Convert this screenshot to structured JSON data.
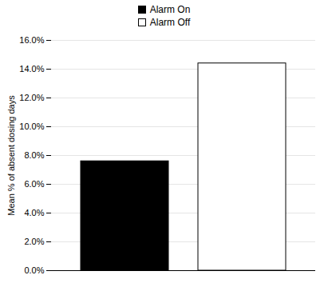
{
  "chart_data": {
    "type": "bar",
    "categories": [
      "Alarm On",
      "Alarm Off"
    ],
    "values": [
      0.076,
      0.144
    ],
    "colors": [
      "#000000",
      "#ffffff"
    ],
    "ylabel": "Mean % of absent dosing days",
    "ylim": [
      0,
      0.16
    ],
    "yticks": [
      {
        "value": 0.0,
        "label": "0.0%"
      },
      {
        "value": 0.02,
        "label": "2.0%"
      },
      {
        "value": 0.04,
        "label": "4.0%"
      },
      {
        "value": 0.06,
        "label": "6.0%"
      },
      {
        "value": 0.08,
        "label": "8.0%"
      },
      {
        "value": 0.1,
        "label": "10.0%"
      },
      {
        "value": 0.12,
        "label": "12.0%"
      },
      {
        "value": 0.14,
        "label": "14.0%"
      },
      {
        "value": 0.16,
        "label": "16.0%"
      }
    ],
    "grid": true,
    "legend": "top",
    "tick_labels": "y"
  }
}
